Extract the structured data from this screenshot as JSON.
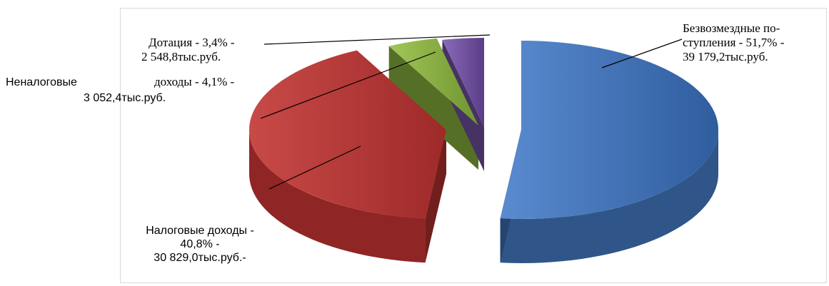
{
  "chart_data": {
    "type": "pie",
    "title": "",
    "categories": [
      "Безвозмездные поступления",
      "Налоговые доходы",
      "Неналоговые доходы",
      "Дотация"
    ],
    "values": [
      51.7,
      40.8,
      4.1,
      3.4
    ],
    "amounts": [
      "39 179,2",
      "30 829,0",
      "3 052,4",
      "2 548,8"
    ],
    "colors": [
      "#3d6db0",
      "#b8302f",
      "#8ab33f",
      "#7150a0"
    ],
    "labels": [
      {
        "lines": [
          "Безвозмездные по-",
          "ступления - 51,7% -",
          "39 179,2тыс.руб."
        ]
      },
      {
        "lines": [
          "Налоговые доходы -",
          "40,8% -",
          "30 829,0тыс.руб.-"
        ]
      },
      {
        "lines": [
          "Неналоговые",
          "доходы - 4,1% -",
          "3 052,4тыс.руб."
        ]
      },
      {
        "lines": [
          "Дотация - 3,4% -",
          "2 548,8тыс.руб."
        ]
      }
    ]
  }
}
